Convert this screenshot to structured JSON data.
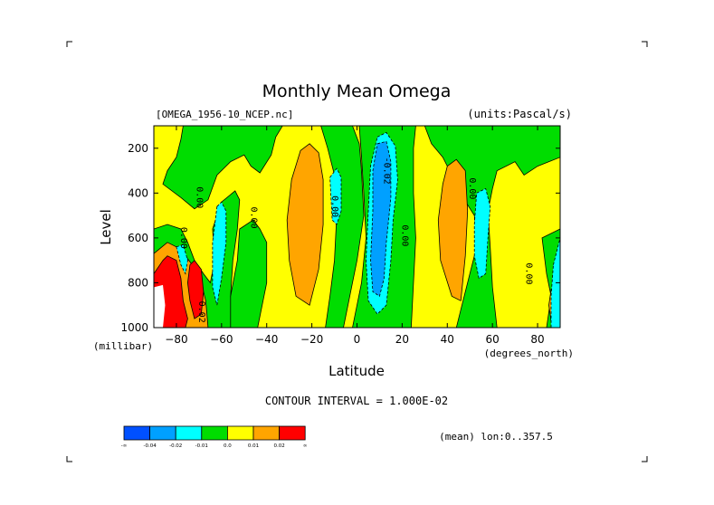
{
  "chart_data": {
    "type": "heatmap",
    "title": "Monthly Mean Omega",
    "file_label": "[OMEGA_1956-10_NCEP.nc]",
    "units_label": "(units:Pascal/s)",
    "xlabel": "Latitude",
    "ylabel": "Level",
    "x_unit": "(degrees_north)",
    "y_unit": "(millibar)",
    "xlim": [
      -90,
      90
    ],
    "ylim": [
      1000,
      100
    ],
    "x_ticks": [
      -80,
      -60,
      -40,
      -20,
      0,
      20,
      40,
      60,
      80
    ],
    "y_ticks": [
      200,
      400,
      600,
      800,
      1000
    ],
    "contour_interval_label": "CONTOUR INTERVAL = 1.000E-02",
    "mean_label": "(mean) lon:0..357.5",
    "contour_labels": [
      {
        "text": "0.00",
        "lat": -71,
        "lev": 420
      },
      {
        "text": "0.00",
        "lat": -78,
        "lev": 600
      },
      {
        "text": "0.00",
        "lat": -47,
        "lev": 510
      },
      {
        "text": "0.00",
        "lat": -11,
        "lev": 460
      },
      {
        "text": "0.00",
        "lat": 20,
        "lev": 590
      },
      {
        "text": "-0.02",
        "lat": 12,
        "lev": 300
      },
      {
        "text": "0.00",
        "lat": 50,
        "lev": 380
      },
      {
        "text": "0.00",
        "lat": 75,
        "lev": 760
      },
      {
        "text": "0.02",
        "lat": -70,
        "lev": 930
      }
    ],
    "colorbar": {
      "colors": [
        "#0050ff",
        "#00a0ff",
        "#00ffff",
        "#00dd00",
        "#ffff00",
        "#ffa500",
        "#ff0000"
      ],
      "labels": [
        "-∞",
        "-0.04",
        "-0.02",
        "-0.01",
        "0.0",
        "0.01",
        "0.02",
        "∞"
      ]
    },
    "regions": [
      {
        "name": "background",
        "value": 0.005,
        "color": "#ffff00"
      },
      {
        "name": "green-band-west-polar",
        "value": -0.005,
        "color": "#00dd00"
      },
      {
        "name": "green-band-midlat-south",
        "value": -0.005,
        "color": "#00dd00"
      },
      {
        "name": "green-band-equatorial",
        "value": -0.005,
        "color": "#00dd00"
      },
      {
        "name": "green-band-north",
        "value": -0.005,
        "color": "#00dd00"
      },
      {
        "name": "orange-ascent-south-subtropics",
        "value": 0.015,
        "color": "#ffa500"
      },
      {
        "name": "orange-ascent-north-subtropics",
        "value": 0.015,
        "color": "#ffa500"
      },
      {
        "name": "orange-antarctic",
        "value": 0.015,
        "color": "#ffa500"
      },
      {
        "name": "red-antarctic",
        "value": 0.025,
        "color": "#ff0000"
      },
      {
        "name": "cyan-itcz-outer",
        "value": -0.015,
        "color": "#00ffff"
      },
      {
        "name": "blue-itcz-core",
        "value": -0.03,
        "color": "#00a0ff"
      },
      {
        "name": "cyan-sh-midlat",
        "value": -0.015,
        "color": "#00ffff"
      },
      {
        "name": "cyan-nh-midlat",
        "value": -0.015,
        "color": "#00ffff"
      },
      {
        "name": "cyan-north-pole",
        "value": -0.015,
        "color": "#00ffff"
      },
      {
        "name": "cyan-antarctic",
        "value": -0.015,
        "color": "#00ffff"
      },
      {
        "name": "cyan-south-tropics",
        "value": -0.015,
        "color": "#00ffff"
      }
    ]
  }
}
